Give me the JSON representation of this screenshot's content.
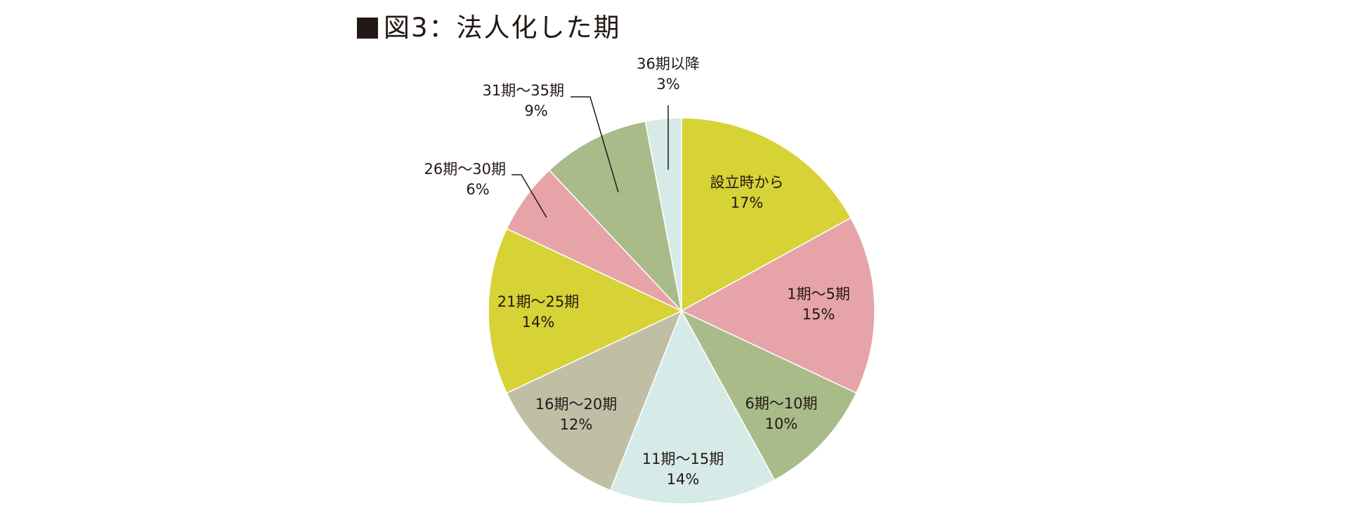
{
  "title": "図3：法人化した期",
  "chart_data": {
    "type": "pie",
    "start_angle": "12 o'clock",
    "direction": "clockwise",
    "slices": [
      {
        "label": "設立時から",
        "value": 17,
        "percent_label": "17%",
        "color": "#d7d235"
      },
      {
        "label": "1期〜5期",
        "value": 15,
        "percent_label": "15%",
        "color": "#e6a4a8"
      },
      {
        "label": "6期〜10期",
        "value": 10,
        "percent_label": "10%",
        "color": "#aabb8a"
      },
      {
        "label": "11期〜15期",
        "value": 14,
        "percent_label": "14%",
        "color": "#d6eae8"
      },
      {
        "label": "16期〜20期",
        "value": 12,
        "percent_label": "12%",
        "color": "#c1bea6"
      },
      {
        "label": "21期〜25期",
        "value": 14,
        "percent_label": "14%",
        "color": "#d7d235"
      },
      {
        "label": "26期〜30期",
        "value": 6,
        "percent_label": "6%",
        "color": "#e6a4a8"
      },
      {
        "label": "31期〜35期",
        "value": 9,
        "percent_label": "9%",
        "color": "#aabb8a"
      },
      {
        "label": "36期以降",
        "value": 3,
        "percent_label": "3%",
        "color": "#d6eae8"
      }
    ]
  }
}
